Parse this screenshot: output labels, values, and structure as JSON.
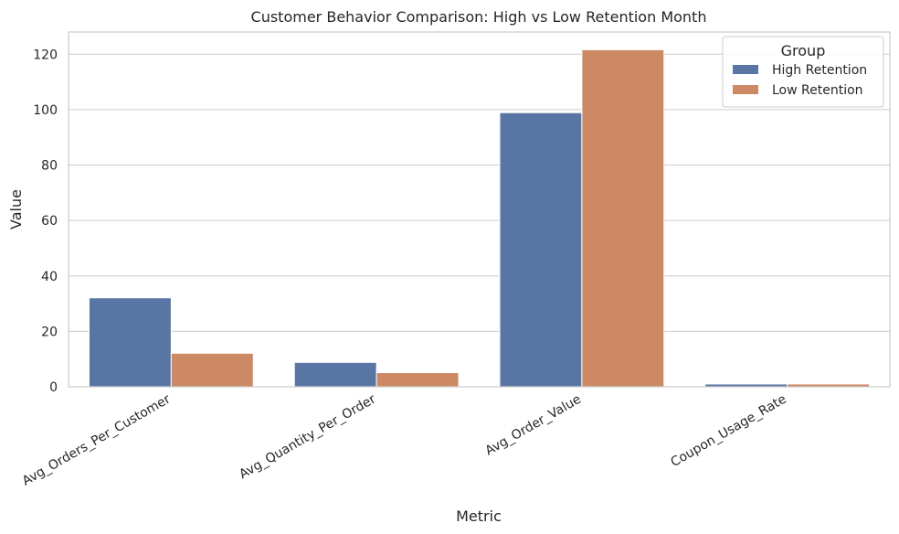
{
  "chart_data": {
    "type": "bar",
    "title": "Customer Behavior Comparison: High vs Low Retention Month",
    "xlabel": "Metric",
    "ylabel": "Value",
    "categories": [
      "Avg_Orders_Per_Customer",
      "Avg_Quantity_Per_Order",
      "Avg_Order_Value",
      "Coupon_Usage_Rate"
    ],
    "series": [
      {
        "name": "High Retention",
        "color": "#5975a4",
        "values": [
          32.1,
          8.8,
          98.9,
          1.0
        ]
      },
      {
        "name": "Low Retention",
        "color": "#cc8963",
        "values": [
          12.1,
          5.1,
          121.6,
          1.0
        ]
      }
    ],
    "ylim": [
      0,
      128
    ],
    "yticks": [
      0,
      20,
      40,
      60,
      80,
      100,
      120
    ],
    "grid": true,
    "legend": {
      "title": "Group",
      "placement": "top-right"
    }
  }
}
